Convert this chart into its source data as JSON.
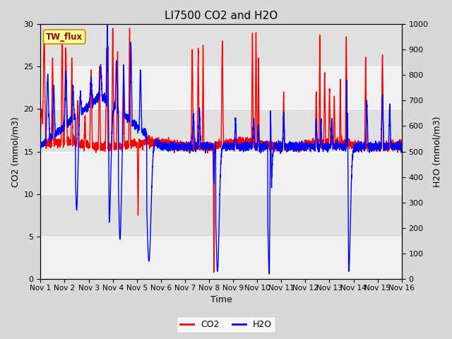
{
  "title": "LI7500 CO2 and H2O",
  "xlabel": "Time",
  "ylabel_left": "CO2 (mmol/m3)",
  "ylabel_right": "H2O (mmol/m3)",
  "ylim_left": [
    0,
    30
  ],
  "ylim_right": [
    0,
    1000
  ],
  "yticks_left": [
    0,
    5,
    10,
    15,
    20,
    25,
    30
  ],
  "yticks_right": [
    0,
    100,
    200,
    300,
    400,
    500,
    600,
    700,
    800,
    900,
    1000
  ],
  "xtick_labels": [
    "Nov 1",
    "Nov 2",
    "Nov 3",
    "Nov 4",
    "Nov 5",
    "Nov 6",
    "Nov 7",
    "Nov 8",
    "Nov 9",
    "Nov 10",
    "Nov 11",
    "Nov 12",
    "Nov 13",
    "Nov 14",
    "Nov 15",
    "Nov 16"
  ],
  "co2_color": "#FF0000",
  "h2o_color": "#0000FF",
  "fig_bg_color": "#D8D8D8",
  "plot_bg_light": "#F0F0F0",
  "plot_bg_dark": "#E0E0E0",
  "annotation_text": "TW_flux",
  "annotation_bg": "#FFFF99",
  "annotation_border": "#CC8800",
  "annotation_text_color": "#990000",
  "legend_co2": "CO2",
  "legend_h2o": "H2O",
  "title_fontsize": 11,
  "axis_label_fontsize": 9,
  "tick_fontsize": 8,
  "linewidth": 1.0
}
